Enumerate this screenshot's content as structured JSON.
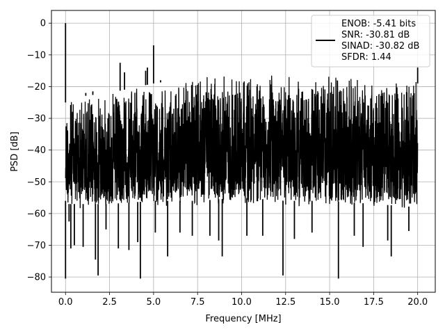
{
  "chart_data": {
    "type": "line",
    "title": "",
    "xlabel": "Frequency [MHz]",
    "ylabel": "PSD [dB]",
    "xlim": [
      -0.8,
      21.0
    ],
    "ylim": [
      -84.8,
      4.0
    ],
    "xticks": [
      0.0,
      2.5,
      5.0,
      7.5,
      10.0,
      12.5,
      15.0,
      17.5,
      20.0
    ],
    "xtick_labels": [
      "0.0",
      "2.5",
      "5.0",
      "7.5",
      "10.0",
      "12.5",
      "15.0",
      "17.5",
      "20.0"
    ],
    "yticks": [
      0,
      -10,
      -20,
      -30,
      -40,
      -50,
      -60,
      -70,
      -80
    ],
    "ytick_labels": [
      "0",
      "−10",
      "−20",
      "−30",
      "−40",
      "−50",
      "−60",
      "−70",
      "−80"
    ],
    "grid": true,
    "legend_position": "top-right",
    "legend_lines": [
      "ENOB: -5.41 bits",
      "SNR: -30.81 dB",
      "SINAD: -30.82 dB",
      "SFDR: 1.44"
    ],
    "line_color": "#000000",
    "series": [
      {
        "envelope": {
          "x": [
            0.0,
            0.05,
            0.1,
            1.0,
            2.5,
            5.0,
            7.5,
            10.0,
            12.5,
            15.0,
            17.5,
            20.0
          ],
          "top": [
            -25,
            -25,
            -24,
            -23,
            -22,
            -19,
            -17,
            -16,
            -17,
            -17,
            -18,
            -19
          ],
          "bottom": [
            -56,
            -56,
            -57,
            -57,
            -57,
            -56,
            -56,
            -55,
            -56,
            -56,
            -57,
            -58
          ]
        },
        "spikes": [
          {
            "x": 0.0,
            "y": 0.0
          },
          {
            "x": 0.0,
            "y": -80.5
          },
          {
            "x": 0.2,
            "y": -62.5
          },
          {
            "x": 0.3,
            "y": -71.0
          },
          {
            "x": 0.5,
            "y": -70.0
          },
          {
            "x": 1.0,
            "y": -70.5
          },
          {
            "x": 1.7,
            "y": -74.5
          },
          {
            "x": 1.85,
            "y": -79.5
          },
          {
            "x": 2.3,
            "y": -65.0
          },
          {
            "x": 3.0,
            "y": -71.0
          },
          {
            "x": 3.6,
            "y": -71.5
          },
          {
            "x": 4.1,
            "y": -69.0
          },
          {
            "x": 4.25,
            "y": -80.5
          },
          {
            "x": 5.1,
            "y": -66.0
          },
          {
            "x": 5.8,
            "y": -73.5
          },
          {
            "x": 6.5,
            "y": -66.0
          },
          {
            "x": 7.2,
            "y": -67.0
          },
          {
            "x": 8.2,
            "y": -67.0
          },
          {
            "x": 8.7,
            "y": -68.5
          },
          {
            "x": 8.9,
            "y": -73.5
          },
          {
            "x": 10.3,
            "y": -67.0
          },
          {
            "x": 11.2,
            "y": -67.0
          },
          {
            "x": 12.35,
            "y": -79.5
          },
          {
            "x": 13.0,
            "y": -68.0
          },
          {
            "x": 14.0,
            "y": -66.0
          },
          {
            "x": 15.5,
            "y": -80.5
          },
          {
            "x": 16.4,
            "y": -67.0
          },
          {
            "x": 16.9,
            "y": -70.5
          },
          {
            "x": 18.3,
            "y": -68.5
          },
          {
            "x": 18.5,
            "y": -73.5
          },
          {
            "x": 19.5,
            "y": -65.5
          },
          {
            "x": 1.15,
            "y": -22.0
          },
          {
            "x": 1.55,
            "y": -21.5
          },
          {
            "x": 3.1,
            "y": -12.5
          },
          {
            "x": 3.35,
            "y": -15.5
          },
          {
            "x": 4.55,
            "y": -15.0
          },
          {
            "x": 4.65,
            "y": -14.0
          },
          {
            "x": 5.0,
            "y": -7.0
          },
          {
            "x": 5.4,
            "y": -18.0
          },
          {
            "x": 20.0,
            "y": -14.0
          }
        ]
      }
    ]
  }
}
